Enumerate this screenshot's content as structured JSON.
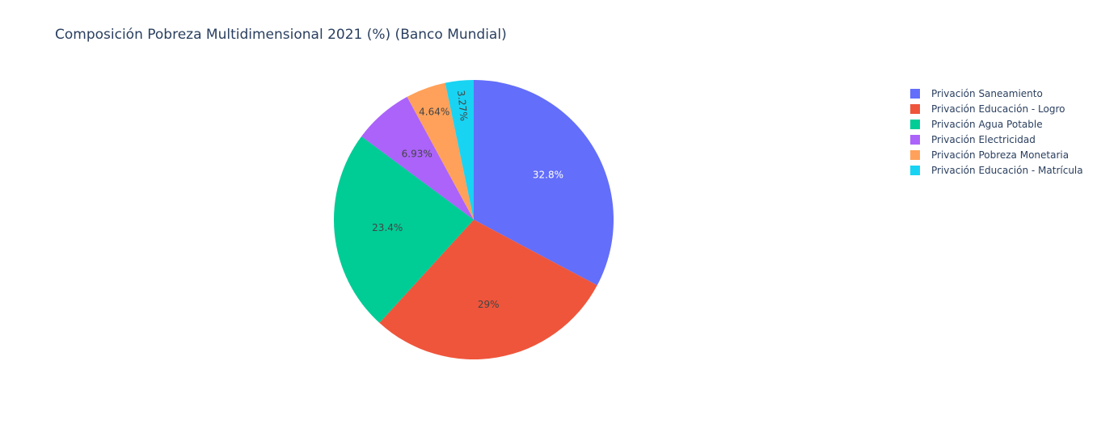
{
  "chart_data": {
    "type": "pie",
    "title": "Composición Pobreza Multidimensional 2021 (%) (Banco Mundial)",
    "legend_position": "right",
    "slices": [
      {
        "label": "Privación Saneamiento",
        "value": 32.8,
        "text": "32.8%",
        "color": "#636efa"
      },
      {
        "label": "Privación Educación - Logro",
        "value": 29.0,
        "text": "29%",
        "color": "#ef553b"
      },
      {
        "label": "Privación Agua Potable",
        "value": 23.4,
        "text": "23.4%",
        "color": "#00cc96"
      },
      {
        "label": "Privación Electricidad",
        "value": 6.93,
        "text": "6.93%",
        "color": "#ab63fa"
      },
      {
        "label": "Privación Pobreza Monetaria",
        "value": 4.64,
        "text": "4.64%",
        "color": "#ffa15a"
      },
      {
        "label": "Privación Educación - Matrícula",
        "value": 3.27,
        "text": "3.27%",
        "color": "#19d3f3"
      }
    ]
  }
}
